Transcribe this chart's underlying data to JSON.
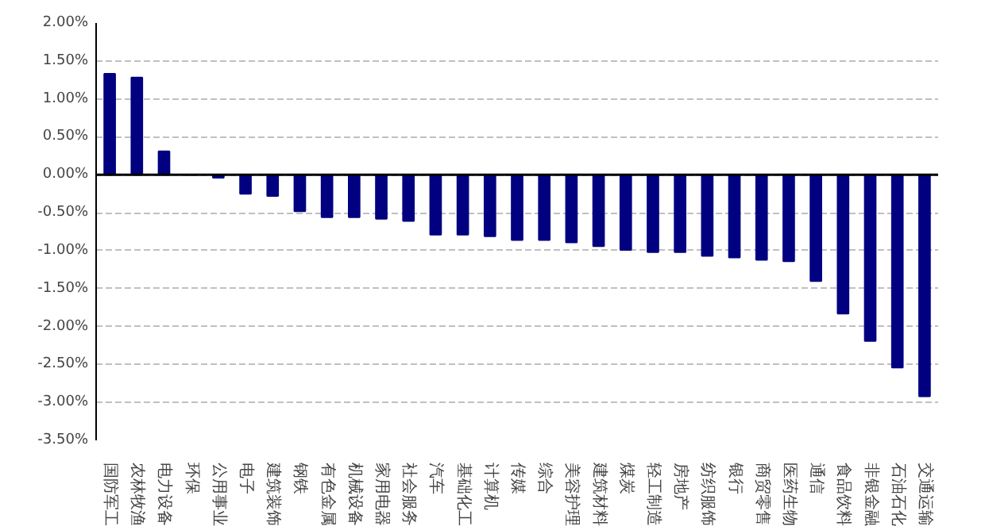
{
  "chart_data": {
    "type": "bar",
    "categories": [
      "国防军工",
      "农林牧渔",
      "电力设备",
      "环保",
      "公用事业",
      "电子",
      "建筑装饰",
      "钢铁",
      "有色金属",
      "机械设备",
      "家用电器",
      "社会服务",
      "汽车",
      "基础化工",
      "计算机",
      "传媒",
      "综合",
      "美容护理",
      "建筑材料",
      "煤炭",
      "轻工制造",
      "房地产",
      "纺织服饰",
      "银行",
      "商贸零售",
      "医药生物",
      "通信",
      "食品饮料",
      "非银金融",
      "石油石化",
      "交通运输"
    ],
    "values": [
      1.33,
      1.28,
      0.31,
      0.0,
      -0.04,
      -0.25,
      -0.28,
      -0.48,
      -0.56,
      -0.56,
      -0.58,
      -0.61,
      -0.79,
      -0.79,
      -0.81,
      -0.86,
      -0.86,
      -0.89,
      -0.94,
      -0.99,
      -1.02,
      -1.02,
      -1.07,
      -1.09,
      -1.12,
      -1.14,
      -1.4,
      -1.83,
      -2.19,
      -2.54,
      -2.92
    ],
    "color": "#000080",
    "ylim": [
      -3.5,
      2.0
    ],
    "yticks": [
      {
        "value": 2.0,
        "label": "2.00%"
      },
      {
        "value": 1.5,
        "label": "1.50%"
      },
      {
        "value": 1.0,
        "label": "1.00%"
      },
      {
        "value": 0.5,
        "label": "0.50%"
      },
      {
        "value": 0,
        "label": "0.00%"
      },
      {
        "value": -0.5,
        "label": "-0.50%"
      },
      {
        "value": -1.0,
        "label": "-1.00%"
      },
      {
        "value": -1.5,
        "label": "-1.50%"
      },
      {
        "value": -2.0,
        "label": "-2.00%"
      },
      {
        "value": -2.5,
        "label": "-2.50%"
      },
      {
        "value": -3.0,
        "label": "-3.00%"
      },
      {
        "value": -3.5,
        "label": "-3.50%"
      }
    ],
    "grid": "y"
  }
}
